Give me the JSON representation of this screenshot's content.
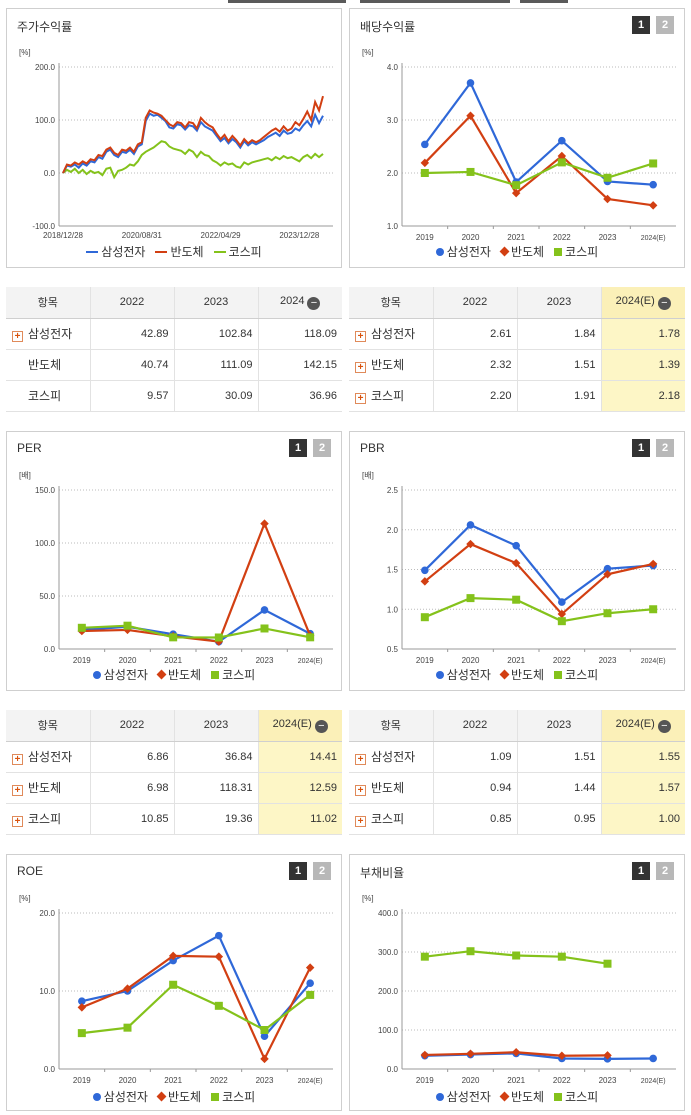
{
  "colors": {
    "samsung": "#2f68d8",
    "semi": "#d23f12",
    "kospi": "#84c21b"
  },
  "top_panels": [
    {
      "title": "주가수익률",
      "has_tabs": false
    },
    {
      "title": "배당수익률",
      "has_tabs": true,
      "tab1": "1",
      "tab2": "2"
    },
    {
      "title": "PER",
      "has_tabs": true,
      "tab1": "1",
      "tab2": "2"
    },
    {
      "title": "PBR",
      "has_tabs": true,
      "tab1": "1",
      "tab2": "2"
    },
    {
      "title": "ROE",
      "has_tabs": true,
      "tab1": "1",
      "tab2": "2"
    },
    {
      "title": "부채비율",
      "has_tabs": true,
      "tab1": "1",
      "tab2": "2"
    }
  ],
  "legend": {
    "samsung": "삼성전자",
    "semi": "반도체",
    "kospi": "코스피"
  },
  "tables": [
    {
      "header": [
        "항목",
        "2022",
        "2023",
        "2024"
      ],
      "rows": [
        {
          "name": "삼성전자",
          "plus": true,
          "values": [
            "42.89",
            "102.84",
            "118.09"
          ]
        },
        {
          "name": "반도체",
          "plus": false,
          "values": [
            "40.74",
            "111.09",
            "142.15"
          ]
        },
        {
          "name": "코스피",
          "plus": false,
          "values": [
            "9.57",
            "30.09",
            "36.96"
          ]
        }
      ],
      "highlight_last": false
    },
    {
      "header": [
        "항목",
        "2022",
        "2023",
        "2024(E)"
      ],
      "rows": [
        {
          "name": "삼성전자",
          "plus": true,
          "values": [
            "2.61",
            "1.84",
            "1.78"
          ]
        },
        {
          "name": "반도체",
          "plus": true,
          "values": [
            "2.32",
            "1.51",
            "1.39"
          ]
        },
        {
          "name": "코스피",
          "plus": true,
          "values": [
            "2.20",
            "1.91",
            "2.18"
          ]
        }
      ],
      "highlight_last": true
    },
    {
      "header": [
        "항목",
        "2022",
        "2023",
        "2024(E)"
      ],
      "rows": [
        {
          "name": "삼성전자",
          "plus": true,
          "values": [
            "6.86",
            "36.84",
            "14.41"
          ]
        },
        {
          "name": "반도체",
          "plus": true,
          "values": [
            "6.98",
            "118.31",
            "12.59"
          ]
        },
        {
          "name": "코스피",
          "plus": true,
          "values": [
            "10.85",
            "19.36",
            "11.02"
          ]
        }
      ],
      "highlight_last": true
    },
    {
      "header": [
        "항목",
        "2022",
        "2023",
        "2024(E)"
      ],
      "rows": [
        {
          "name": "삼성전자",
          "plus": true,
          "values": [
            "1.09",
            "1.51",
            "1.55"
          ]
        },
        {
          "name": "반도체",
          "plus": true,
          "values": [
            "0.94",
            "1.44",
            "1.57"
          ]
        },
        {
          "name": "코스피",
          "plus": true,
          "values": [
            "0.85",
            "0.95",
            "1.00"
          ]
        }
      ],
      "highlight_last": true
    }
  ],
  "chart_data": [
    {
      "id": "stock-return",
      "type": "line",
      "title": "주가수익률",
      "unit": "[%]",
      "ylim": [
        -100,
        200
      ],
      "yticks": [
        -100,
        0,
        100,
        200
      ],
      "ytick_labels": [
        "-100.0",
        "0.0",
        "100.0",
        "200.0"
      ],
      "xtick_labels": [
        "2018/12/28",
        "2020/08/31",
        "2022/04/29",
        "2023/12/28"
      ],
      "xtick_index": [
        0,
        20,
        40,
        60
      ],
      "x_count": 67,
      "grid": true,
      "series": [
        {
          "name": "삼성전자",
          "key": "samsung",
          "marker": "line",
          "values": [
            0,
            14,
            12,
            16,
            10,
            18,
            14,
            22,
            20,
            30,
            27,
            40,
            44,
            34,
            30,
            40,
            38,
            44,
            36,
            50,
            54,
            98,
            112,
            108,
            110,
            104,
            98,
            86,
            84,
            92,
            90,
            82,
            90,
            88,
            80,
            96,
            88,
            84,
            80,
            70,
            60,
            66,
            56,
            64,
            58,
            48,
            60,
            52,
            58,
            54,
            58,
            62,
            68,
            72,
            76,
            70,
            80,
            74,
            76,
            84,
            80,
            90,
            98,
            88,
            110,
            94,
            108
          ]
        },
        {
          "name": "반도체",
          "key": "semi",
          "marker": "line",
          "values": [
            0,
            16,
            14,
            20,
            16,
            22,
            18,
            26,
            24,
            34,
            32,
            44,
            48,
            38,
            34,
            44,
            42,
            48,
            40,
            54,
            58,
            104,
            118,
            114,
            112,
            108,
            100,
            92,
            88,
            96,
            94,
            86,
            96,
            94,
            84,
            104,
            96,
            90,
            86,
            74,
            64,
            72,
            60,
            70,
            62,
            52,
            64,
            56,
            62,
            58,
            62,
            68,
            74,
            80,
            84,
            78,
            88,
            80,
            84,
            96,
            90,
            102,
            116,
            100,
            134,
            118,
            145
          ]
        },
        {
          "name": "코스피",
          "key": "kospi",
          "marker": "line",
          "values": [
            0,
            6,
            2,
            8,
            0,
            6,
            -2,
            4,
            0,
            2,
            -4,
            8,
            10,
            -8,
            4,
            6,
            10,
            16,
            14,
            22,
            34,
            40,
            44,
            48,
            54,
            60,
            58,
            50,
            46,
            44,
            42,
            36,
            44,
            40,
            30,
            40,
            34,
            32,
            24,
            20,
            14,
            20,
            16,
            18,
            12,
            10,
            20,
            16,
            20,
            22,
            24,
            26,
            28,
            24,
            30,
            26,
            32,
            28,
            30,
            26,
            22,
            30,
            34,
            28,
            36,
            30,
            36
          ]
        }
      ]
    },
    {
      "id": "dividend-yield",
      "type": "line",
      "title": "배당수익률",
      "unit": "[%]",
      "categories": [
        "2019",
        "2020",
        "2021",
        "2022",
        "2023",
        "2024(E)"
      ],
      "ylim": [
        1.0,
        4.0
      ],
      "yticks": [
        1.0,
        2.0,
        3.0,
        4.0
      ],
      "ytick_labels": [
        "1.0",
        "2.0",
        "3.0",
        "4.0"
      ],
      "grid": true,
      "series": [
        {
          "name": "삼성전자",
          "key": "samsung",
          "marker": "circle",
          "values": [
            2.54,
            3.7,
            1.83,
            2.61,
            1.84,
            1.78
          ]
        },
        {
          "name": "반도체",
          "key": "semi",
          "marker": "diamond",
          "values": [
            2.19,
            3.08,
            1.62,
            2.32,
            1.51,
            1.39
          ]
        },
        {
          "name": "코스피",
          "key": "kospi",
          "marker": "square",
          "values": [
            2.0,
            2.02,
            1.77,
            2.2,
            1.91,
            2.18
          ]
        }
      ]
    },
    {
      "id": "per",
      "type": "line",
      "title": "PER",
      "unit": "[배]",
      "categories": [
        "2019",
        "2020",
        "2021",
        "2022",
        "2023",
        "2024(E)"
      ],
      "ylim": [
        0,
        150
      ],
      "yticks": [
        0,
        50,
        100,
        150
      ],
      "ytick_labels": [
        "0.0",
        "50.0",
        "100.0",
        "150.0"
      ],
      "grid": true,
      "series": [
        {
          "name": "삼성전자",
          "key": "samsung",
          "marker": "circle",
          "values": [
            18,
            21,
            14,
            6.86,
            36.84,
            14.41
          ]
        },
        {
          "name": "반도체",
          "key": "semi",
          "marker": "diamond",
          "values": [
            17,
            18,
            12,
            6.98,
            118.31,
            12.59
          ]
        },
        {
          "name": "코스피",
          "key": "kospi",
          "marker": "square",
          "values": [
            20,
            22,
            11,
            10.85,
            19.36,
            11.02
          ]
        }
      ]
    },
    {
      "id": "pbr",
      "type": "line",
      "title": "PBR",
      "unit": "[배]",
      "categories": [
        "2019",
        "2020",
        "2021",
        "2022",
        "2023",
        "2024(E)"
      ],
      "ylim": [
        0.5,
        2.5
      ],
      "yticks": [
        0.5,
        1.0,
        1.5,
        2.0,
        2.5
      ],
      "ytick_labels": [
        "0.5",
        "1.0",
        "1.5",
        "2.0",
        "2.5"
      ],
      "grid": true,
      "series": [
        {
          "name": "삼성전자",
          "key": "samsung",
          "marker": "circle",
          "values": [
            1.49,
            2.06,
            1.8,
            1.09,
            1.51,
            1.55
          ]
        },
        {
          "name": "반도체",
          "key": "semi",
          "marker": "diamond",
          "values": [
            1.35,
            1.82,
            1.58,
            0.94,
            1.44,
            1.57
          ]
        },
        {
          "name": "코스피",
          "key": "kospi",
          "marker": "square",
          "values": [
            0.9,
            1.14,
            1.12,
            0.85,
            0.95,
            1.0
          ]
        }
      ]
    },
    {
      "id": "roe",
      "type": "line",
      "title": "ROE",
      "unit": "[%]",
      "categories": [
        "2019",
        "2020",
        "2021",
        "2022",
        "2023",
        "2024(E)"
      ],
      "ylim": [
        0,
        20
      ],
      "yticks": [
        0,
        10,
        20
      ],
      "ytick_labels": [
        "0.0",
        "10.0",
        "20.0"
      ],
      "grid": true,
      "series": [
        {
          "name": "삼성전자",
          "key": "samsung",
          "marker": "circle",
          "values": [
            8.7,
            10.0,
            13.9,
            17.1,
            4.2,
            11.0
          ]
        },
        {
          "name": "반도체",
          "key": "semi",
          "marker": "diamond",
          "values": [
            7.9,
            10.3,
            14.5,
            14.4,
            1.3,
            13.0
          ]
        },
        {
          "name": "코스피",
          "key": "kospi",
          "marker": "square",
          "values": [
            4.6,
            5.3,
            10.8,
            8.1,
            5.0,
            9.5
          ]
        }
      ]
    },
    {
      "id": "debt-ratio",
      "type": "line",
      "title": "부채비율",
      "unit": "[%]",
      "categories": [
        "2019",
        "2020",
        "2021",
        "2022",
        "2023",
        "2024(E)"
      ],
      "ylim": [
        0,
        400
      ],
      "yticks": [
        0,
        100,
        200,
        300,
        400
      ],
      "ytick_labels": [
        "0.0",
        "100.0",
        "200.0",
        "300.0",
        "400.0"
      ],
      "grid": true,
      "series": [
        {
          "name": "삼성전자",
          "key": "samsung",
          "marker": "circle",
          "values": [
            34,
            37,
            40,
            27,
            26,
            27
          ]
        },
        {
          "name": "반도체",
          "key": "semi",
          "marker": "diamond",
          "values": [
            36,
            39,
            43,
            34,
            35,
            null
          ]
        },
        {
          "name": "코스피",
          "key": "kospi",
          "marker": "square",
          "values": [
            288,
            302,
            291,
            288,
            270,
            null
          ]
        }
      ]
    }
  ]
}
